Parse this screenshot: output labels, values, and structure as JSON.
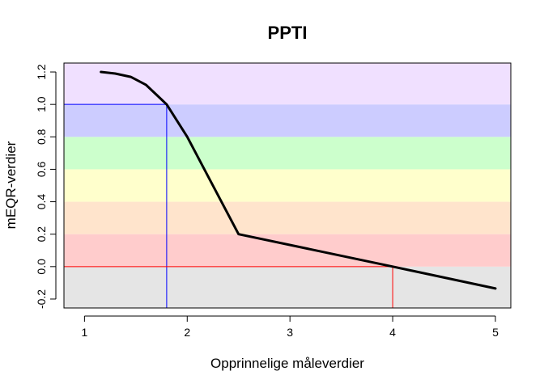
{
  "chart_data": {
    "type": "line",
    "title": "PPTI",
    "xlabel": "Opprinnelige måleverdier",
    "ylabel": "mEQR-verdier",
    "xlim": [
      0.8,
      5.15
    ],
    "ylim": [
      -0.255,
      1.255
    ],
    "x_ticks": [
      "1",
      "2",
      "3",
      "4",
      "5"
    ],
    "y_ticks": [
      "-0.2",
      "0.0",
      "0.2",
      "0.4",
      "0.6",
      "0.8",
      "1.0",
      "1.2"
    ],
    "x_tick_values": [
      1,
      2,
      3,
      4,
      5
    ],
    "y_tick_values": [
      -0.2,
      0,
      0.2,
      0.4,
      0.6,
      0.8,
      1.0,
      1.2
    ],
    "bands": [
      {
        "y0": -0.255,
        "y1": 0.0,
        "color": "#e5e5e5"
      },
      {
        "y0": 0.0,
        "y1": 0.2,
        "color": "#ffcccc"
      },
      {
        "y0": 0.2,
        "y1": 0.4,
        "color": "#ffe4cc"
      },
      {
        "y0": 0.4,
        "y1": 0.6,
        "color": "#ffffcc"
      },
      {
        "y0": 0.6,
        "y1": 0.8,
        "color": "#ccffcc"
      },
      {
        "y0": 0.8,
        "y1": 1.0,
        "color": "#ccccff"
      },
      {
        "y0": 1.0,
        "y1": 1.255,
        "color": "#f0e0ff"
      }
    ],
    "series": [
      {
        "x": [
          1.16,
          1.3,
          1.45,
          1.6,
          1.7,
          1.8,
          2.0,
          2.5,
          4.0,
          5.0
        ],
        "y": [
          1.2,
          1.19,
          1.17,
          1.12,
          1.06,
          1.0,
          0.8,
          0.2,
          0.0,
          -0.135
        ],
        "color": "#000000"
      }
    ],
    "reference_lines": [
      {
        "x": 1.8,
        "y": 1.0,
        "color": "#0000ff"
      },
      {
        "x": 4.0,
        "y": 0.0,
        "color": "#ff0000"
      }
    ],
    "grid": false
  }
}
